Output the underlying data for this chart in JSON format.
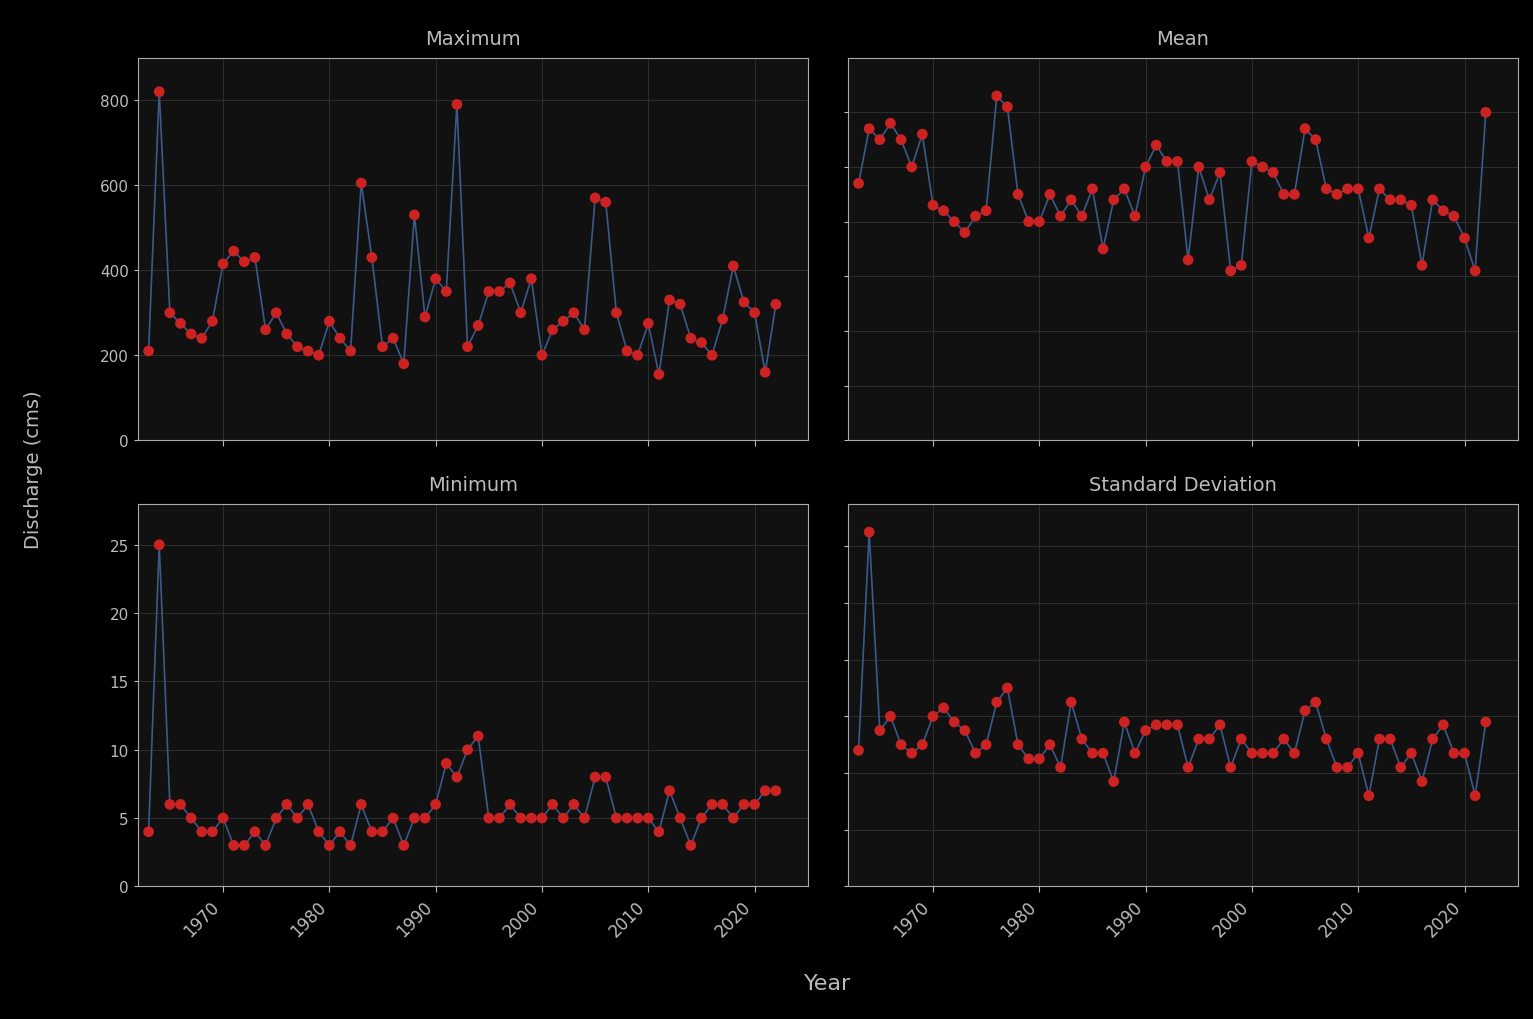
{
  "years": [
    1963,
    1964,
    1965,
    1966,
    1967,
    1968,
    1969,
    1970,
    1971,
    1972,
    1973,
    1974,
    1975,
    1976,
    1977,
    1978,
    1979,
    1980,
    1981,
    1982,
    1983,
    1984,
    1985,
    1986,
    1987,
    1988,
    1989,
    1990,
    1991,
    1992,
    1993,
    1994,
    1995,
    1996,
    1997,
    1998,
    1999,
    2000,
    2001,
    2002,
    2003,
    2004,
    2005,
    2006,
    2007,
    2008,
    2009,
    2010,
    2011,
    2012,
    2013,
    2014,
    2015,
    2016,
    2017,
    2018,
    2019,
    2020,
    2021,
    2022
  ],
  "maximum": [
    210,
    820,
    300,
    275,
    250,
    240,
    280,
    415,
    445,
    420,
    430,
    260,
    300,
    250,
    220,
    210,
    200,
    280,
    240,
    210,
    605,
    430,
    220,
    240,
    180,
    530,
    290,
    380,
    350,
    790,
    220,
    270,
    350,
    350,
    370,
    300,
    380,
    200,
    260,
    280,
    300,
    260,
    570,
    560,
    300,
    210,
    200,
    275,
    155,
    330,
    320,
    240,
    230,
    200,
    285,
    410,
    325,
    300,
    160,
    320
  ],
  "mean": [
    47,
    57,
    55,
    58,
    55,
    50,
    56,
    43,
    42,
    40,
    38,
    41,
    42,
    63,
    61,
    45,
    40,
    40,
    45,
    41,
    44,
    41,
    46,
    35,
    44,
    46,
    41,
    50,
    54,
    51,
    51,
    33,
    50,
    44,
    49,
    31,
    32,
    51,
    50,
    49,
    45,
    45,
    57,
    55,
    46,
    45,
    46,
    46,
    37,
    46,
    44,
    44,
    43,
    32,
    44,
    42,
    41,
    37,
    31,
    60
  ],
  "minimum": [
    4,
    25,
    6,
    6,
    5,
    4,
    4,
    5,
    3,
    3,
    4,
    3,
    5,
    6,
    5,
    6,
    4,
    3,
    4,
    3,
    6,
    4,
    4,
    5,
    3,
    5,
    5,
    6,
    9,
    8,
    10,
    11,
    5,
    5,
    6,
    5,
    5,
    5,
    6,
    5,
    6,
    5,
    8,
    8,
    5,
    5,
    5,
    5,
    4,
    7,
    5,
    3,
    5,
    6,
    6,
    5,
    6,
    6,
    7,
    7
  ],
  "std": [
    48,
    125,
    55,
    60,
    50,
    47,
    50,
    60,
    63,
    58,
    55,
    47,
    50,
    65,
    70,
    50,
    45,
    45,
    50,
    42,
    65,
    52,
    47,
    47,
    37,
    58,
    47,
    55,
    57,
    57,
    57,
    42,
    52,
    52,
    57,
    42,
    52,
    47,
    47,
    47,
    52,
    47,
    62,
    65,
    52,
    42,
    42,
    47,
    32,
    52,
    52,
    42,
    47,
    37,
    52,
    57,
    47,
    47,
    32,
    58
  ],
  "title_maximum": "Maximum",
  "title_mean": "Mean",
  "title_minimum": "Minimum",
  "title_std": "Standard Deviation",
  "xlabel": "Year",
  "ylabel": "Discharge (cms)",
  "bg_color": "#000000",
  "plot_bg_color": "#111111",
  "line_color": "#3a5a8a",
  "dot_color": "#cc2222",
  "text_color": "#bbbbbb",
  "strip_bg_color": "#383838",
  "strip_border_color": "#aaaaaa",
  "grid_color": "#333333",
  "yticks_maximum": [
    0,
    200,
    400,
    600,
    800
  ],
  "ylim_maximum": [
    0,
    900
  ],
  "yticks_mean": [
    0,
    10,
    20,
    30,
    40,
    50,
    60
  ],
  "ylim_mean": [
    0,
    70
  ],
  "yticks_minimum": [
    0,
    5,
    10,
    15,
    20,
    25
  ],
  "ylim_minimum": [
    0,
    28
  ],
  "yticks_std": [
    0,
    20,
    40,
    60,
    80,
    100,
    120
  ],
  "ylim_std": [
    0,
    135
  ],
  "xticks": [
    1970,
    1980,
    1990,
    2000,
    2010,
    2020
  ],
  "xlim": [
    1962,
    2025
  ]
}
